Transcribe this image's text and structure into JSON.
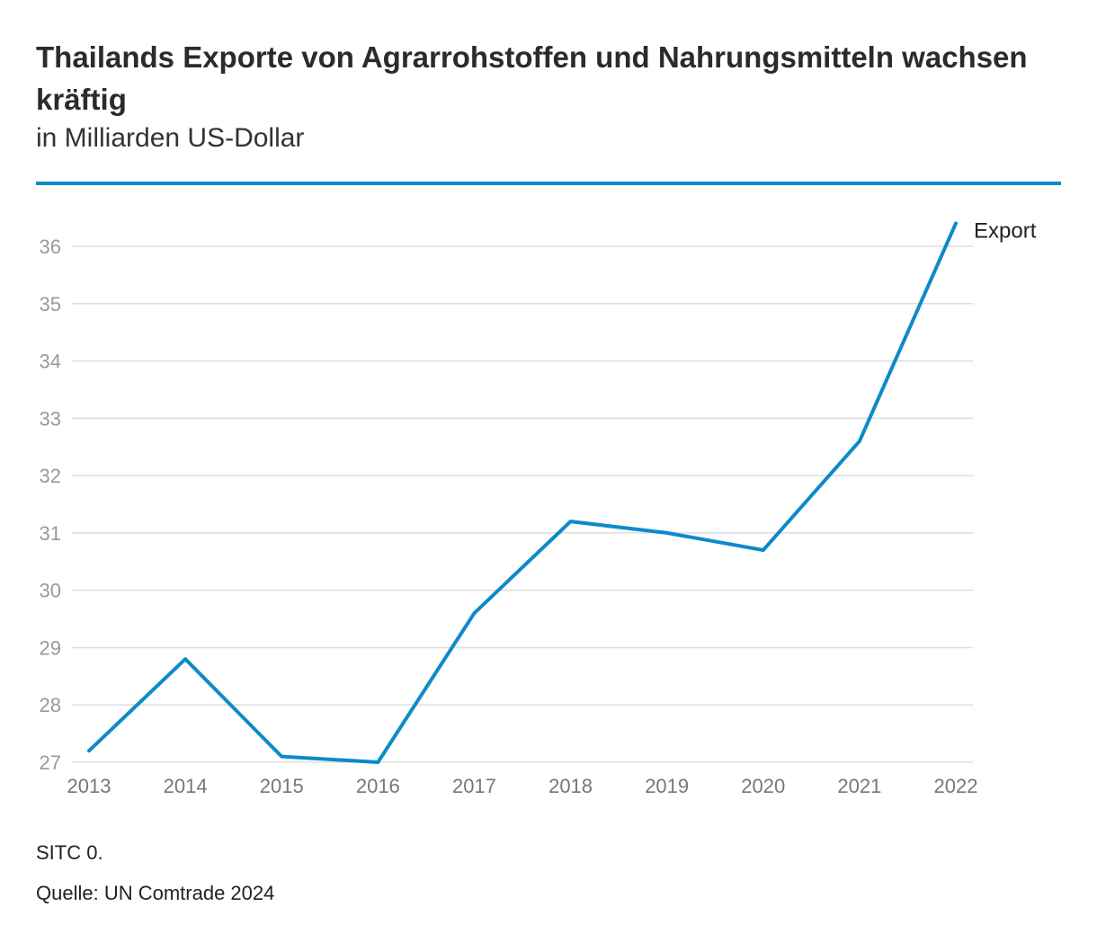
{
  "header": {
    "title": "Thailands Exporte von Agrarrohstoffen und Nahrungsmitteln wachsen kräftig",
    "subtitle": "in Milliarden US-Dollar"
  },
  "footer": {
    "note": "SITC 0.",
    "source": "Quelle: UN Comtrade 2024"
  },
  "colors": {
    "accent": "#0d8ac9",
    "grid": "#dddddd",
    "tick_text": "#999999",
    "xtick_text": "#777777"
  },
  "chart_data": {
    "type": "line",
    "x": [
      "2013",
      "2014",
      "2015",
      "2016",
      "2017",
      "2018",
      "2019",
      "2020",
      "2021",
      "2022"
    ],
    "series": [
      {
        "name": "Export",
        "values": [
          27.2,
          28.8,
          27.1,
          27.0,
          29.6,
          31.2,
          31.0,
          30.7,
          32.6,
          36.4
        ]
      }
    ],
    "yticks": [
      27,
      28,
      29,
      30,
      31,
      32,
      33,
      34,
      35,
      36
    ],
    "ylim": [
      27,
      36
    ],
    "grid": true,
    "legend": "label at line end, right"
  }
}
